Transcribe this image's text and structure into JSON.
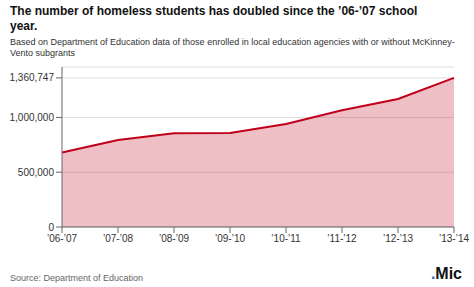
{
  "chart_data": {
    "type": "area",
    "title": "The number of homeless students has doubled since the ’06-’07 school\nyear.",
    "subtitle": "Based on Department of Education data of those enrolled in local education agencies with or without McKinney-Vento subgrants",
    "categories": [
      "’06-’07",
      "’07-’08",
      "’08-’09",
      "’09-’10",
      "’10-’11",
      "’11-’12",
      "’12-’13",
      "’13-’14"
    ],
    "values": [
      679724,
      794617,
      855206,
      857846,
      939903,
      1065794,
      1168354,
      1360747
    ],
    "color": "#c0001a",
    "ylim": [
      0,
      1460000
    ],
    "yticks": [
      0,
      {
        "value": 500000,
        "label": "500,000"
      },
      {
        "value": 1000000,
        "label": "1,000,000"
      },
      {
        "value": 1360747,
        "label": "1,360,747"
      }
    ],
    "grid": true,
    "annotations": [
      {
        "text": "Source: Department of Education"
      },
      {
        "text": ".",
        "color": "#3366cc"
      },
      {
        "text": "Mic",
        "color": "#111111"
      }
    ]
  }
}
